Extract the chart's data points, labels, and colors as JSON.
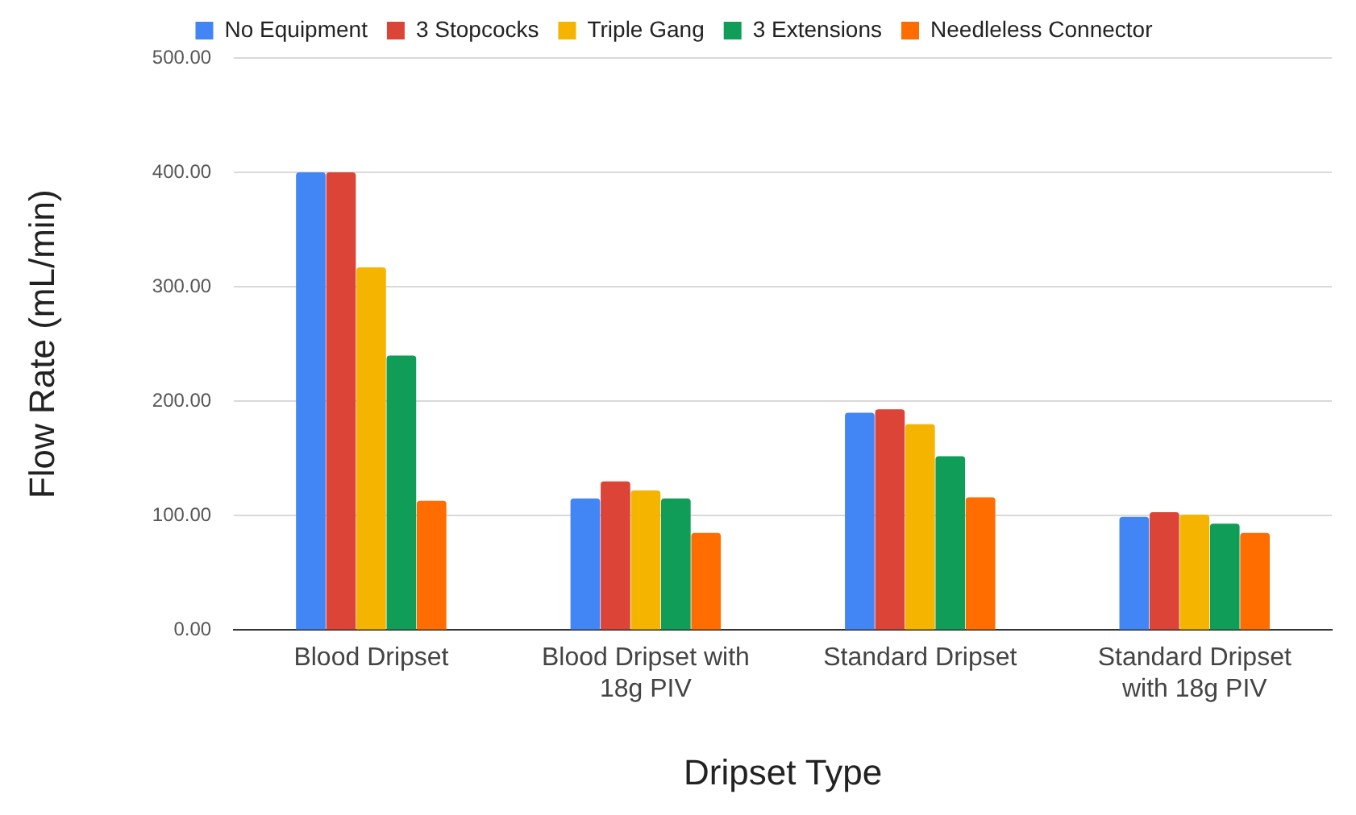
{
  "chart_data": {
    "type": "bar",
    "xlabel": "Dripset Type",
    "ylabel": "Flow Rate (mL/min)",
    "categories": [
      "Blood Dripset",
      "Blood Dripset with 18g PIV",
      "Standard Dripset",
      "Standard Dripset with 18g PIV"
    ],
    "series": [
      {
        "name": "No Equipment",
        "color": "#4285f4",
        "values": [
          400,
          115,
          190,
          99
        ]
      },
      {
        "name": "3 Stopcocks",
        "color": "#db4437",
        "values": [
          400,
          130,
          193,
          103
        ]
      },
      {
        "name": "Triple Gang",
        "color": "#f4b400",
        "values": [
          317,
          122,
          180,
          101
        ]
      },
      {
        "name": "3 Extensions",
        "color": "#0f9d58",
        "values": [
          240,
          115,
          152,
          93
        ]
      },
      {
        "name": "Needleless Connector",
        "color": "#ff6d00",
        "values": [
          113,
          85,
          116,
          85
        ]
      }
    ],
    "ylim": [
      0,
      500
    ],
    "yticks": [
      {
        "value": 0,
        "label": "0.00"
      },
      {
        "value": 100,
        "label": "100.00"
      },
      {
        "value": 200,
        "label": "200.00"
      },
      {
        "value": 300,
        "label": "300.00"
      },
      {
        "value": 400,
        "label": "400.00"
      },
      {
        "value": 500,
        "label": "500.00"
      }
    ],
    "grid": "y",
    "legend": "top"
  }
}
